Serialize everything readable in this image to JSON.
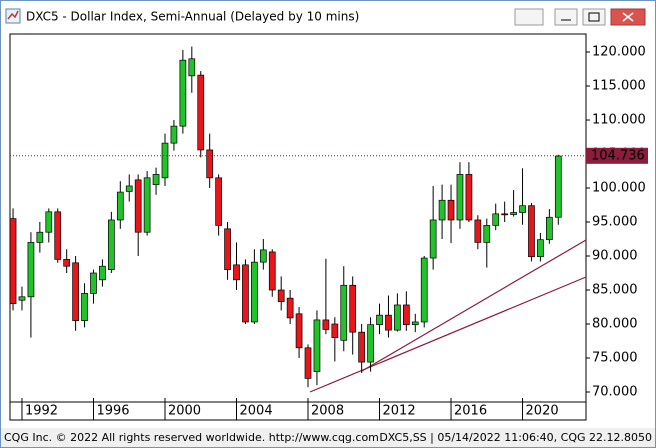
{
  "chart_data": {
    "type": "candlestick",
    "title": "DXC5 - Dollar Index, Semi-Annual (Delayed by 10 mins)",
    "footer_left": "CQG Inc. © 2022 All rights reserved worldwide. http://www.cqg.com",
    "footer_right": "DXC5,SS | 05/14/2022 11:06:40, CQG 22.12.8050",
    "x": [
      1991.5,
      1992.0,
      1992.5,
      1993.0,
      1993.5,
      1994.0,
      1994.5,
      1995.0,
      1995.5,
      1996.0,
      1996.5,
      1997.0,
      1997.5,
      1998.0,
      1998.5,
      1999.0,
      1999.5,
      2000.0,
      2000.5,
      2001.0,
      2001.5,
      2002.0,
      2002.5,
      2003.0,
      2003.5,
      2004.0,
      2004.5,
      2005.0,
      2005.5,
      2006.0,
      2006.5,
      2007.0,
      2007.5,
      2008.0,
      2008.5,
      2009.0,
      2009.5,
      2010.0,
      2010.5,
      2011.0,
      2011.5,
      2012.0,
      2012.5,
      2013.0,
      2013.5,
      2014.0,
      2014.5,
      2015.0,
      2015.5,
      2016.0,
      2016.5,
      2017.0,
      2017.5,
      2018.0,
      2018.5,
      2019.0,
      2019.5,
      2020.0,
      2020.5,
      2021.0,
      2021.5,
      2022.0
    ],
    "open": [
      95.5,
      83.5,
      84,
      92,
      93.5,
      96.5,
      89.5,
      89,
      80.5,
      84.5,
      86.5,
      88,
      95.3,
      99.5,
      101.2,
      93.5,
      100.5,
      101.5,
      106.6,
      109.1,
      116.5,
      116.6,
      105.6,
      101.5,
      94,
      88.7,
      88.7,
      80.3,
      89.1,
      90.6,
      85,
      83.8,
      81.5,
      76.5,
      73,
      80.6,
      80,
      77.6,
      85.7,
      78.8,
      74.4,
      79.9,
      81.3,
      79.1,
      82.8,
      79.9,
      80.3,
      89.7,
      95.3,
      98.2,
      95.3,
      102,
      95.3,
      92,
      94.5,
      96.2,
      96.1,
      96.4,
      97.4,
      89.9,
      92.4,
      95.7
    ],
    "high": [
      97,
      85.5,
      93.5,
      95,
      97,
      97,
      91,
      90,
      86,
      88,
      89.5,
      96.5,
      101,
      102,
      102,
      102.5,
      103,
      108,
      110,
      120.3,
      120.8,
      117.2,
      108,
      102,
      95,
      92,
      89.5,
      91,
      92.5,
      91,
      87,
      85,
      82.5,
      77,
      82,
      89.6,
      81,
      88.5,
      87,
      80,
      81,
      83,
      84.2,
      84.5,
      84.8,
      81.5,
      90,
      100.3,
      100.5,
      100.5,
      103.8,
      103.8,
      96,
      95.5,
      97.7,
      98,
      99.7,
      102.9,
      97.8,
      93.4,
      96.9,
      104.9
    ],
    "low": [
      82,
      82,
      78,
      90.5,
      92,
      89,
      87.5,
      79,
      79.5,
      83,
      85.5,
      87.5,
      94,
      98,
      90,
      93,
      99,
      100.3,
      105.5,
      108,
      114,
      104.5,
      100,
      93,
      86.5,
      85,
      80,
      80,
      88,
      84,
      82,
      80,
      75,
      70.7,
      71,
      78.5,
      74.5,
      76,
      75.5,
      72.8,
      73,
      78.5,
      78,
      78.9,
      79,
      78.8,
      79.5,
      88,
      92.5,
      91.9,
      94,
      95,
      91,
      88.3,
      93.8,
      95,
      95.8,
      94.6,
      89.2,
      89.2,
      91.8,
      94.6
    ],
    "close": [
      83,
      84,
      92,
      93.5,
      96.5,
      89.5,
      88.5,
      80.5,
      84.5,
      87.5,
      88.5,
      95.3,
      99.4,
      100.3,
      93.5,
      101.5,
      102,
      106.6,
      109.1,
      118.8,
      119,
      105.6,
      101.5,
      94.5,
      88,
      86.5,
      80.3,
      89.1,
      90.9,
      85,
      83.3,
      80.9,
      76.5,
      72,
      80.6,
      79.2,
      78,
      85.7,
      78.8,
      74.4,
      79.9,
      81.3,
      79.1,
      82.8,
      79.9,
      80.3,
      89.7,
      95.3,
      98.2,
      95.3,
      102,
      95.3,
      92,
      94.5,
      96.2,
      96.1,
      96.4,
      97.4,
      89.9,
      92.4,
      95.7,
      104.7
    ],
    "up_color": "#22c22a",
    "down_color": "#e8161b",
    "last_price": 104.736,
    "last_price_color": "#8b1c3c",
    "xlim": [
      1991.33,
      2023.55
    ],
    "xticks": [
      1992,
      1996,
      2000,
      2004,
      2008,
      2012,
      2016,
      2020
    ],
    "ylim": [
      68.53,
      122.65
    ],
    "yticks": [
      {
        "value": 70,
        "label": "70.000"
      },
      {
        "value": 75,
        "label": "75.000"
      },
      {
        "value": 80,
        "label": "80.000"
      },
      {
        "value": 85,
        "label": "85.000"
      },
      {
        "value": 90,
        "label": "90.000"
      },
      {
        "value": 95,
        "label": "95.000"
      },
      {
        "value": 100,
        "label": "100.000"
      },
      {
        "value": 105,
        "label": "105.000"
      },
      {
        "value": 110,
        "label": "110.000"
      },
      {
        "value": 115,
        "label": "115.000"
      },
      {
        "value": 120,
        "label": "120.000"
      }
    ]
  }
}
